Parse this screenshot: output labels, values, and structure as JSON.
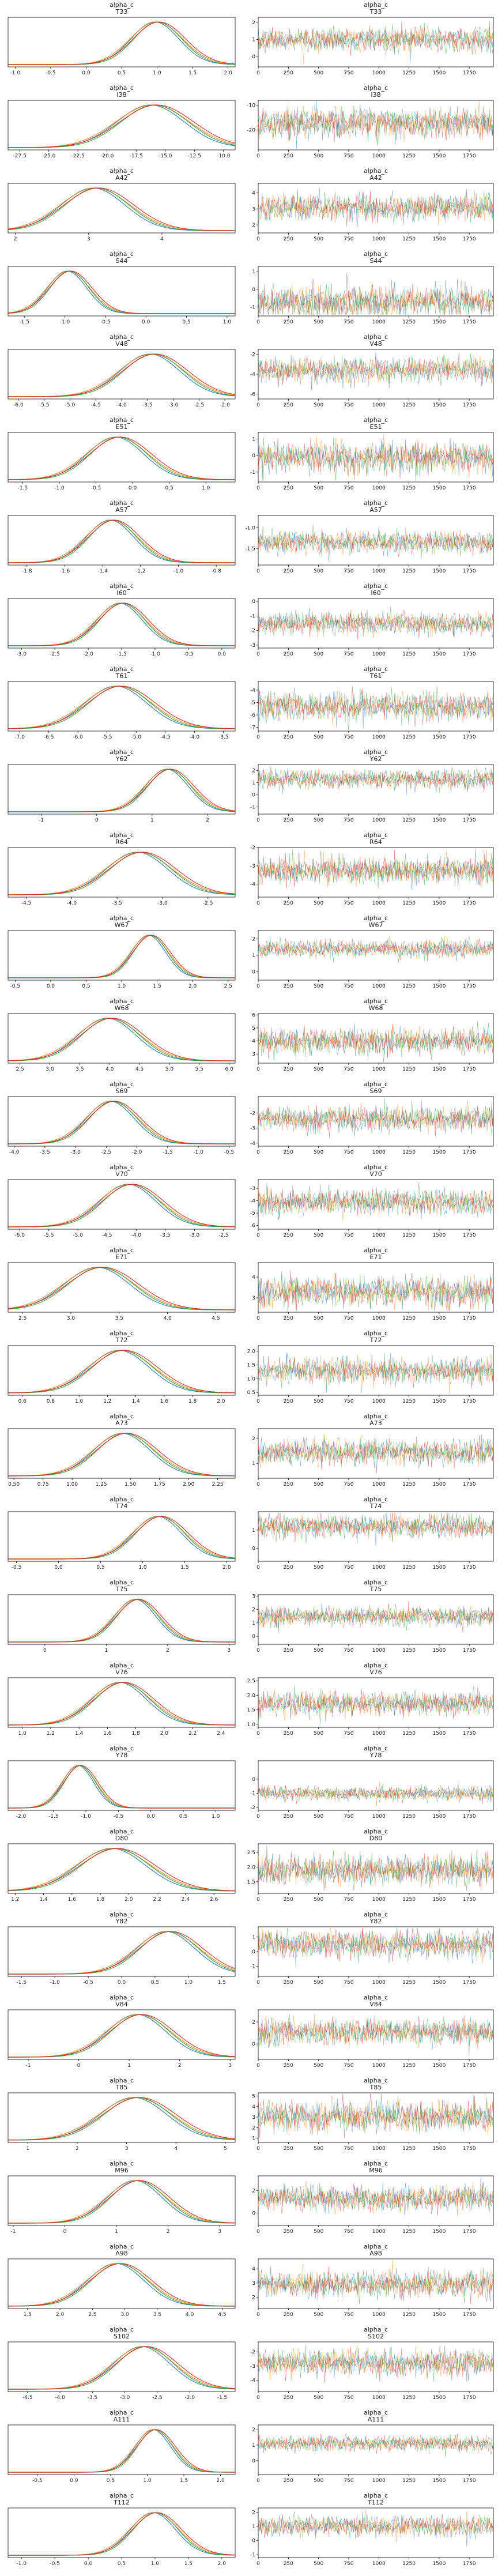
{
  "figure": {
    "title_prefix": "alpha_c",
    "trace_x_ticks": [
      "0",
      "250",
      "500",
      "750",
      "1000",
      "1250",
      "1500",
      "1750"
    ],
    "colors": [
      "#1f77b4",
      "#ff7f0e",
      "#2ca02c",
      "#d62728"
    ]
  },
  "chart_data": [
    {
      "type": "line",
      "subtitle": "T33",
      "kde": {
        "xticks": [
          "-1.0",
          "-0.5",
          "0.0",
          "0.5",
          "1.0",
          "1.5",
          "2.0"
        ],
        "xlim": [
          -1.1,
          2.1
        ],
        "mode": 1.0,
        "sd": 0.35
      },
      "trace": {
        "yticks": [
          "0",
          "1",
          "2"
        ],
        "ylim": [
          -0.6,
          2.3
        ],
        "center": 1.0,
        "sd": 0.35
      }
    },
    {
      "type": "line",
      "subtitle": "I38",
      "kde": {
        "xticks": [
          "-27.5",
          "-25.0",
          "-22.5",
          "-20.0",
          "-17.5",
          "-15.0",
          "-12.5",
          "-10.0"
        ],
        "xlim": [
          -28.5,
          -9.0
        ],
        "mode": -16.0,
        "sd": 3.0
      },
      "trace": {
        "yticks": [
          "-10",
          "-20"
        ],
        "ylim": [
          -28,
          -8
        ],
        "center": -17,
        "sd": 3
      }
    },
    {
      "type": "line",
      "subtitle": "A42",
      "kde": {
        "xticks": [
          "2",
          "3",
          "4"
        ],
        "xlim": [
          1.9,
          5.0
        ],
        "mode": 3.1,
        "sd": 0.45
      },
      "trace": {
        "yticks": [
          "2",
          "3",
          "4"
        ],
        "ylim": [
          1.5,
          4.6
        ],
        "center": 3.1,
        "sd": 0.4
      }
    },
    {
      "type": "line",
      "subtitle": "S44",
      "kde": {
        "xticks": [
          "-1.5",
          "-1.0",
          "-0.5",
          "0.0",
          "0.5",
          "1.0"
        ],
        "xlim": [
          -1.7,
          1.1
        ],
        "mode": -0.95,
        "sd": 0.25
      },
      "trace": {
        "yticks": [
          "-1",
          "0",
          "1"
        ],
        "ylim": [
          -1.5,
          1.3
        ],
        "center": -0.7,
        "sd": 0.45
      }
    },
    {
      "type": "line",
      "subtitle": "V48",
      "kde": {
        "xticks": [
          "-6.0",
          "-5.5",
          "-5.0",
          "-4.5",
          "-4.0",
          "-3.5",
          "-3.0",
          "-2.5",
          "-2.0"
        ],
        "xlim": [
          -6.2,
          -1.8
        ],
        "mode": -3.4,
        "sd": 0.6
      },
      "trace": {
        "yticks": [
          "-2",
          "-4",
          "-6"
        ],
        "ylim": [
          -6.5,
          -1.5
        ],
        "center": -3.6,
        "sd": 0.6
      }
    },
    {
      "type": "line",
      "subtitle": "E51",
      "kde": {
        "xticks": [
          "-1.5",
          "-1.0",
          "-0.5",
          "0.0",
          "0.5",
          "1.0"
        ],
        "xlim": [
          -1.7,
          1.4
        ],
        "mode": -0.2,
        "sd": 0.4
      },
      "trace": {
        "yticks": [
          "1",
          "0",
          "-1"
        ],
        "ylim": [
          -1.6,
          1.4
        ],
        "center": -0.1,
        "sd": 0.45
      }
    },
    {
      "type": "line",
      "subtitle": "A57",
      "kde": {
        "xticks": [
          "-1.8",
          "-1.6",
          "-1.4",
          "-1.2",
          "-1.0",
          "-0.8"
        ],
        "xlim": [
          -1.9,
          -0.7
        ],
        "mode": -1.35,
        "sd": 0.13
      },
      "trace": {
        "yticks": [
          "-1.0",
          "-1.5"
        ],
        "ylim": [
          -1.9,
          -0.7
        ],
        "center": -1.35,
        "sd": 0.13
      }
    },
    {
      "type": "line",
      "subtitle": "I60",
      "kde": {
        "xticks": [
          "-3.0",
          "-2.5",
          "-2.0",
          "-1.5",
          "-1.0",
          "-0.5",
          "0.0"
        ],
        "xlim": [
          -3.2,
          0.2
        ],
        "mode": -1.5,
        "sd": 0.35
      },
      "trace": {
        "yticks": [
          "0",
          "-1",
          "-2",
          "-3"
        ],
        "ylim": [
          -3.2,
          0.2
        ],
        "center": -1.5,
        "sd": 0.35
      }
    },
    {
      "type": "line",
      "subtitle": "T61",
      "kde": {
        "xticks": [
          "-7.0",
          "-6.5",
          "-6.0",
          "-5.5",
          "-5.0",
          "-4.5",
          "-4.0",
          "-3.5"
        ],
        "xlim": [
          -7.2,
          -3.3
        ],
        "mode": -5.3,
        "sd": 0.55
      },
      "trace": {
        "yticks": [
          "-4",
          "-5",
          "-6",
          "-7"
        ],
        "ylim": [
          -7.3,
          -3.3
        ],
        "center": -5.3,
        "sd": 0.55
      }
    },
    {
      "type": "line",
      "subtitle": "Y62",
      "kde": {
        "xticks": [
          "-1",
          "0",
          "1",
          "2"
        ],
        "xlim": [
          -1.6,
          2.5
        ],
        "mode": 1.3,
        "sd": 0.4
      },
      "trace": {
        "yticks": [
          "2",
          "1",
          "0",
          "-1"
        ],
        "ylim": [
          -1.6,
          2.5
        ],
        "center": 1.3,
        "sd": 0.4
      }
    },
    {
      "type": "line",
      "subtitle": "R64",
      "kde": {
        "xticks": [
          "-4.5",
          "-4.0",
          "-3.5",
          "-3.0",
          "-2.5"
        ],
        "xlim": [
          -4.7,
          -2.2
        ],
        "mode": -3.25,
        "sd": 0.35
      },
      "trace": {
        "yticks": [
          "-2",
          "-3",
          "-4"
        ],
        "ylim": [
          -4.7,
          -2.0
        ],
        "center": -3.25,
        "sd": 0.35
      }
    },
    {
      "type": "line",
      "subtitle": "W67",
      "kde": {
        "xticks": [
          "-0.5",
          "0.0",
          "0.5",
          "1.0",
          "1.5",
          "2.0",
          "2.5"
        ],
        "xlim": [
          -0.6,
          2.6
        ],
        "mode": 1.4,
        "sd": 0.25
      },
      "trace": {
        "yticks": [
          "2",
          "1",
          "0"
        ],
        "ylim": [
          -0.5,
          2.5
        ],
        "center": 1.4,
        "sd": 0.25
      }
    },
    {
      "type": "line",
      "subtitle": "W68",
      "kde": {
        "xticks": [
          "2.5",
          "3.0",
          "3.5",
          "4.0",
          "4.5",
          "5.0",
          "5.5",
          "6.0"
        ],
        "xlim": [
          2.3,
          6.1
        ],
        "mode": 4.0,
        "sd": 0.5
      },
      "trace": {
        "yticks": [
          "6",
          "5",
          "4",
          "3"
        ],
        "ylim": [
          2.3,
          6.1
        ],
        "center": 4.0,
        "sd": 0.5
      }
    },
    {
      "type": "line",
      "subtitle": "S69",
      "kde": {
        "xticks": [
          "-4.0",
          "-3.5",
          "-3.0",
          "-2.5",
          "-2.0",
          "-1.5",
          "-1.0",
          "-0.5"
        ],
        "xlim": [
          -4.1,
          -0.4
        ],
        "mode": -2.4,
        "sd": 0.4
      },
      "trace": {
        "yticks": [
          "-2",
          "-3",
          "-4"
        ],
        "ylim": [
          -4.2,
          -0.9
        ],
        "center": -2.4,
        "sd": 0.4
      }
    },
    {
      "type": "line",
      "subtitle": "V70",
      "kde": {
        "xticks": [
          "-6.0",
          "-5.5",
          "-5.0",
          "-4.5",
          "-4.0",
          "-3.5",
          "-3.0",
          "-2.5"
        ],
        "xlim": [
          -6.2,
          -2.3
        ],
        "mode": -4.1,
        "sd": 0.5
      },
      "trace": {
        "yticks": [
          "-3",
          "-4",
          "-5",
          "-6"
        ],
        "ylim": [
          -6.3,
          -2.3
        ],
        "center": -4.1,
        "sd": 0.5
      }
    },
    {
      "type": "line",
      "subtitle": "E71",
      "kde": {
        "xticks": [
          "2.5",
          "3.0",
          "3.5",
          "4.0",
          "4.5"
        ],
        "xlim": [
          2.35,
          4.7
        ],
        "mode": 3.3,
        "sd": 0.35
      },
      "trace": {
        "yticks": [
          "4",
          "3"
        ],
        "ylim": [
          2.3,
          4.7
        ],
        "center": 3.3,
        "sd": 0.35
      }
    },
    {
      "type": "line",
      "subtitle": "T72",
      "kde": {
        "xticks": [
          "0.6",
          "0.8",
          "1.0",
          "1.2",
          "1.4",
          "1.6",
          "1.8",
          "2.0"
        ],
        "xlim": [
          0.5,
          2.1
        ],
        "mode": 1.3,
        "sd": 0.22
      },
      "trace": {
        "yticks": [
          "2.0",
          "1.5",
          "1.0",
          "0.5"
        ],
        "ylim": [
          0.4,
          2.2
        ],
        "center": 1.3,
        "sd": 0.22
      }
    },
    {
      "type": "line",
      "subtitle": "A73",
      "kde": {
        "xticks": [
          "0.50",
          "0.75",
          "1.00",
          "1.25",
          "1.50",
          "1.75",
          "2.00",
          "2.25"
        ],
        "xlim": [
          0.45,
          2.4
        ],
        "mode": 1.45,
        "sd": 0.25
      },
      "trace": {
        "yticks": [
          "2",
          "1"
        ],
        "ylim": [
          0.4,
          2.4
        ],
        "center": 1.45,
        "sd": 0.25
      }
    },
    {
      "type": "line",
      "subtitle": "T74",
      "kde": {
        "xticks": [
          "-0.5",
          "0.0",
          "0.5",
          "1.0",
          "1.5",
          "2.0"
        ],
        "xlim": [
          -0.6,
          2.1
        ],
        "mode": 1.2,
        "sd": 0.3
      },
      "trace": {
        "yticks": [
          "1",
          "0"
        ],
        "ylim": [
          -0.7,
          2.0
        ],
        "center": 1.2,
        "sd": 0.3
      }
    },
    {
      "type": "line",
      "subtitle": "T75",
      "kde": {
        "xticks": [
          "0",
          "1",
          "2",
          "3"
        ],
        "xlim": [
          -0.6,
          3.1
        ],
        "mode": 1.5,
        "sd": 0.35
      },
      "trace": {
        "yticks": [
          "3",
          "2",
          "1",
          "0"
        ],
        "ylim": [
          -0.6,
          3.1
        ],
        "center": 1.5,
        "sd": 0.35
      }
    },
    {
      "type": "line",
      "subtitle": "V76",
      "kde": {
        "xticks": [
          "1.0",
          "1.2",
          "1.4",
          "1.6",
          "1.8",
          "2.0",
          "2.2",
          "2.4"
        ],
        "xlim": [
          0.9,
          2.5
        ],
        "mode": 1.7,
        "sd": 0.2
      },
      "trace": {
        "yticks": [
          "2.5",
          "2.0",
          "1.5",
          "1.0"
        ],
        "ylim": [
          0.9,
          2.6
        ],
        "center": 1.7,
        "sd": 0.2
      }
    },
    {
      "type": "line",
      "subtitle": "Y78",
      "kde": {
        "xticks": [
          "-2.0",
          "-1.5",
          "-1.0",
          "-0.5",
          "0.0",
          "0.5",
          "1.0"
        ],
        "xlim": [
          -2.2,
          1.3
        ],
        "mode": -1.1,
        "sd": 0.25
      },
      "trace": {
        "yticks": [
          "0",
          "-1",
          "-2"
        ],
        "ylim": [
          -2.2,
          1.3
        ],
        "center": -1.0,
        "sd": 0.25
      }
    },
    {
      "type": "line",
      "subtitle": "D80",
      "kde": {
        "xticks": [
          "1.2",
          "1.4",
          "1.6",
          "1.8",
          "2.0",
          "2.2",
          "2.4",
          "2.6"
        ],
        "xlim": [
          1.15,
          2.75
        ],
        "mode": 1.9,
        "sd": 0.25
      },
      "trace": {
        "yticks": [
          "2.5",
          "2.0",
          "1.5"
        ],
        "ylim": [
          1.1,
          2.8
        ],
        "center": 1.9,
        "sd": 0.25
      }
    },
    {
      "type": "line",
      "subtitle": "Y82",
      "kde": {
        "xticks": [
          "-1.5",
          "-1.0",
          "-0.5",
          "0.0",
          "0.5",
          "1.0",
          "1.5"
        ],
        "xlim": [
          -1.7,
          1.7
        ],
        "mode": 0.7,
        "sd": 0.45
      },
      "trace": {
        "yticks": [
          "1",
          "0",
          "-1"
        ],
        "ylim": [
          -1.7,
          1.7
        ],
        "center": 0.5,
        "sd": 0.45
      }
    },
    {
      "type": "line",
      "subtitle": "V84",
      "kde": {
        "xticks": [
          "-1",
          "0",
          "1",
          "2",
          "3"
        ],
        "xlim": [
          -1.4,
          3.1
        ],
        "mode": 1.2,
        "sd": 0.6
      },
      "trace": {
        "yticks": [
          "2",
          "0"
        ],
        "ylim": [
          -1.4,
          3.1
        ],
        "center": 1.1,
        "sd": 0.6
      }
    },
    {
      "type": "line",
      "subtitle": "T85",
      "kde": {
        "xticks": [
          "1",
          "2",
          "3",
          "4",
          "5"
        ],
        "xlim": [
          0.6,
          5.2
        ],
        "mode": 3.2,
        "sd": 0.7
      },
      "trace": {
        "yticks": [
          "5",
          "4",
          "3",
          "2",
          "1"
        ],
        "ylim": [
          0.6,
          5.3
        ],
        "center": 3.1,
        "sd": 0.7
      }
    },
    {
      "type": "line",
      "subtitle": "M96",
      "kde": {
        "xticks": [
          "-1",
          "0",
          "1",
          "2",
          "3"
        ],
        "xlim": [
          -1.1,
          3.3
        ],
        "mode": 1.4,
        "sd": 0.55
      },
      "trace": {
        "yticks": [
          "2",
          "0"
        ],
        "ylim": [
          -1.1,
          3.3
        ],
        "center": 1.3,
        "sd": 0.55
      }
    },
    {
      "type": "line",
      "subtitle": "A98",
      "kde": {
        "xticks": [
          "1.5",
          "2.0",
          "2.5",
          "3.0",
          "3.5",
          "4.0",
          "4.5"
        ],
        "xlim": [
          1.2,
          4.7
        ],
        "mode": 2.9,
        "sd": 0.45
      },
      "trace": {
        "yticks": [
          "4",
          "3",
          "2"
        ],
        "ylim": [
          1.2,
          4.7
        ],
        "center": 2.9,
        "sd": 0.45
      }
    },
    {
      "type": "line",
      "subtitle": "S102",
      "kde": {
        "xticks": [
          "-4.5",
          "-4.0",
          "-3.5",
          "-3.0",
          "-2.5",
          "-2.0",
          "-1.5"
        ],
        "xlim": [
          -4.8,
          -1.3
        ],
        "mode": -2.7,
        "sd": 0.45
      },
      "trace": {
        "yticks": [
          "-2",
          "-3",
          "-4"
        ],
        "ylim": [
          -4.8,
          -1.3
        ],
        "center": -2.8,
        "sd": 0.45
      }
    },
    {
      "type": "line",
      "subtitle": "A111",
      "kde": {
        "xticks": [
          "-0.5",
          "0.0",
          "0.5",
          "1.0",
          "1.5",
          "2.0"
        ],
        "xlim": [
          -0.9,
          2.2
        ],
        "mode": 1.1,
        "sd": 0.25
      },
      "trace": {
        "yticks": [
          "2",
          "1",
          "0"
        ],
        "ylim": [
          -0.9,
          2.3
        ],
        "center": 1.1,
        "sd": 0.25
      }
    },
    {
      "type": "line",
      "subtitle": "T112",
      "kde": {
        "xticks": [
          "-1.0",
          "-0.5",
          "0.0",
          "0.5",
          "1.0",
          "1.5",
          "2.0"
        ],
        "xlim": [
          -1.2,
          2.2
        ],
        "mode": 1.0,
        "sd": 0.35
      },
      "trace": {
        "yticks": [
          "2",
          "1",
          "0",
          "-1"
        ],
        "ylim": [
          -1.2,
          2.3
        ],
        "center": 1.0,
        "sd": 0.35
      }
    }
  ]
}
